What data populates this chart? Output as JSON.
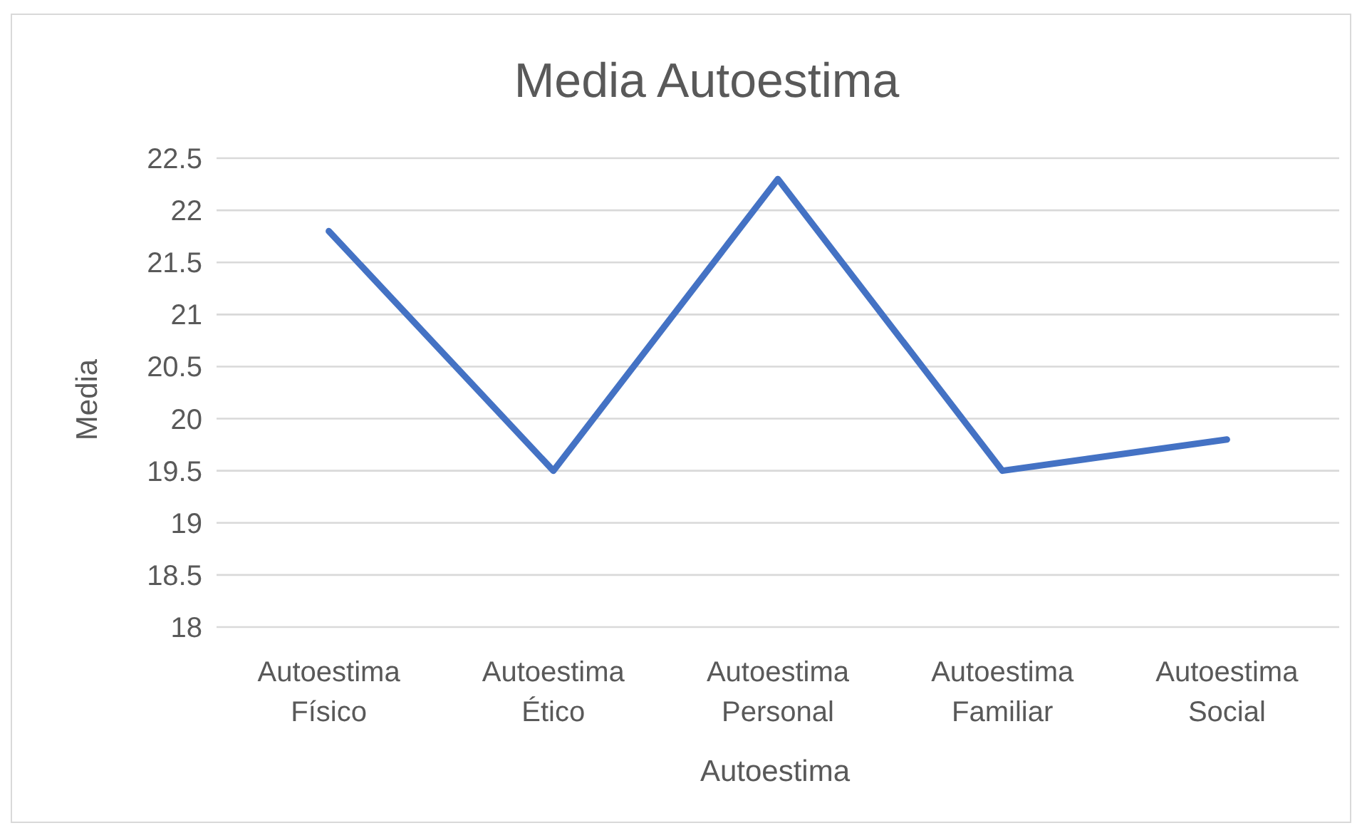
{
  "chart_data": {
    "type": "line",
    "title": "Media Autoestima",
    "xlabel": "Autoestima",
    "ylabel": "Media",
    "categories": [
      "Autoestima Físico",
      "Autoestima Ético",
      "Autoestima Personal",
      "Autoestima Familiar",
      "Autoestima Social"
    ],
    "series": [
      {
        "color": "#4472c4",
        "values": [
          21.8,
          19.5,
          22.3,
          19.5,
          19.8
        ]
      }
    ],
    "ylim": [
      18,
      22.5
    ],
    "yticks": [
      18,
      18.5,
      19,
      19.5,
      20,
      20.5,
      21,
      21.5,
      22,
      22.5
    ],
    "grid": "y",
    "line_style": "solid"
  }
}
